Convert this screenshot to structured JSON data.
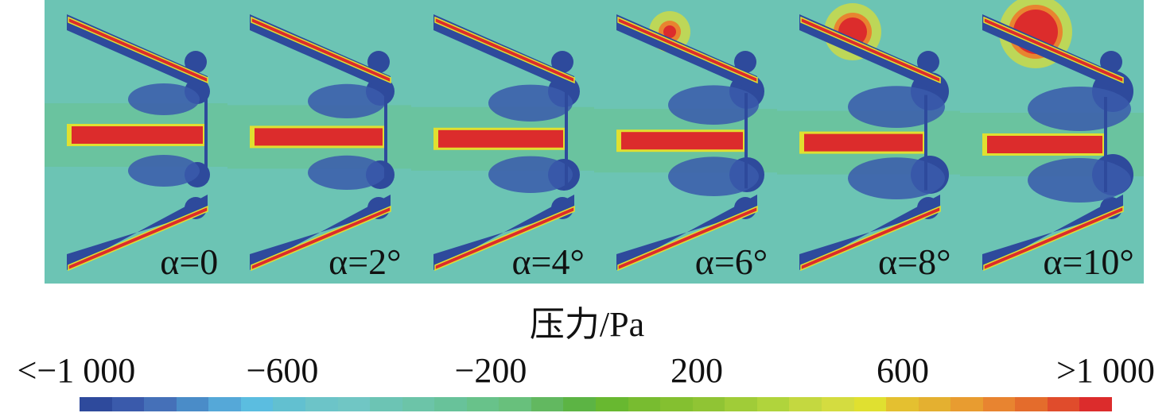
{
  "panels": [
    {
      "label": "α=0"
    },
    {
      "label": "α=2°"
    },
    {
      "label": "α=4°"
    },
    {
      "label": "α=6°"
    },
    {
      "label": "α=8°"
    },
    {
      "label": "α=10°"
    }
  ],
  "colorbar": {
    "title": "压力/Pa",
    "ticks": [
      "<−1 000",
      "−600",
      "−200",
      "200",
      "600",
      ">1 000"
    ],
    "colors": [
      "#2e4a9c",
      "#3a5aab",
      "#4570b8",
      "#4a8cc8",
      "#55a8d8",
      "#5bbde0",
      "#62c0d0",
      "#6cc4c8",
      "#70c6c4",
      "#6cc4b4",
      "#6cc4a8",
      "#68c29a",
      "#68c28a",
      "#68c07c",
      "#62b860",
      "#5cb444",
      "#68b830",
      "#78bc30",
      "#84c030",
      "#90c434",
      "#a0cc38",
      "#b0d43c",
      "#c4d840",
      "#d4dc40",
      "#e0e030",
      "#e4c030",
      "#e4b030",
      "#e89c30",
      "#e88430",
      "#e46c2c",
      "#e04c2c",
      "#dc2c2c"
    ]
  }
}
